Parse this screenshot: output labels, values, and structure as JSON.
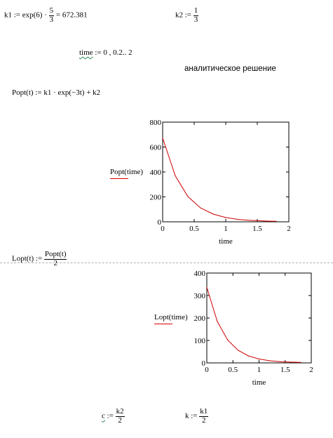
{
  "worksheet": {
    "k1_def": {
      "lhs": "k1",
      "assign": ":=",
      "expr_left": "exp(6) ·",
      "num": "5",
      "den": "3",
      "result": "= 672.381"
    },
    "k2_def": {
      "lhs": "k2",
      "assign": ":=",
      "num": "1",
      "den": "3"
    },
    "time_def": {
      "var": "time",
      "rest": ":= 0 , 0.2.. 2"
    },
    "section_label": "аналитическое решение",
    "popt_def": {
      "text": "Popt(t) := k1 · exp(−3t) + k2"
    },
    "lopt_def": {
      "lhs": "Lopt(t) :=",
      "num": "Popt(t)",
      "den": "2"
    },
    "c_def": {
      "var": "c",
      "assign": ":=",
      "num": "k2",
      "den": "2"
    },
    "k_def": {
      "lhs": "k",
      "assign": ":=",
      "num": "k1",
      "den": "2"
    }
  },
  "chart_data": [
    {
      "type": "line",
      "ylabel": "Popt(time)",
      "xlabel": "time",
      "xlim": [
        0,
        2
      ],
      "ylim": [
        0,
        800
      ],
      "xticks": [
        "0",
        "0.5",
        "1",
        "1.5",
        "2"
      ],
      "yticks": [
        "0",
        "200",
        "400",
        "600",
        "800"
      ],
      "line_color": "#cc0000",
      "series": [
        {
          "x": [
            0,
            0.2,
            0.4,
            0.6,
            0.8,
            1.0,
            1.2,
            1.4,
            1.6,
            1.8
          ],
          "values": [
            672.7,
            369.4,
            202.9,
            111.7,
            61.8,
            34.3,
            19.3,
            11.1,
            6.6,
            4.1
          ]
        }
      ]
    },
    {
      "type": "line",
      "ylabel": "Lopt(time)",
      "xlabel": "time",
      "xlim": [
        0,
        2
      ],
      "ylim": [
        0,
        400
      ],
      "xticks": [
        "0",
        "0.5",
        "1",
        "1.5",
        "2"
      ],
      "yticks": [
        "0",
        "100",
        "200",
        "300",
        "400"
      ],
      "line_color": "#cc0000",
      "series": [
        {
          "x": [
            0,
            0.2,
            0.4,
            0.6,
            0.8,
            1.0,
            1.2,
            1.4,
            1.6,
            1.8
          ],
          "values": [
            336.4,
            184.7,
            101.5,
            55.9,
            30.9,
            17.1,
            9.6,
            5.5,
            3.3,
            2.1
          ]
        }
      ]
    }
  ]
}
